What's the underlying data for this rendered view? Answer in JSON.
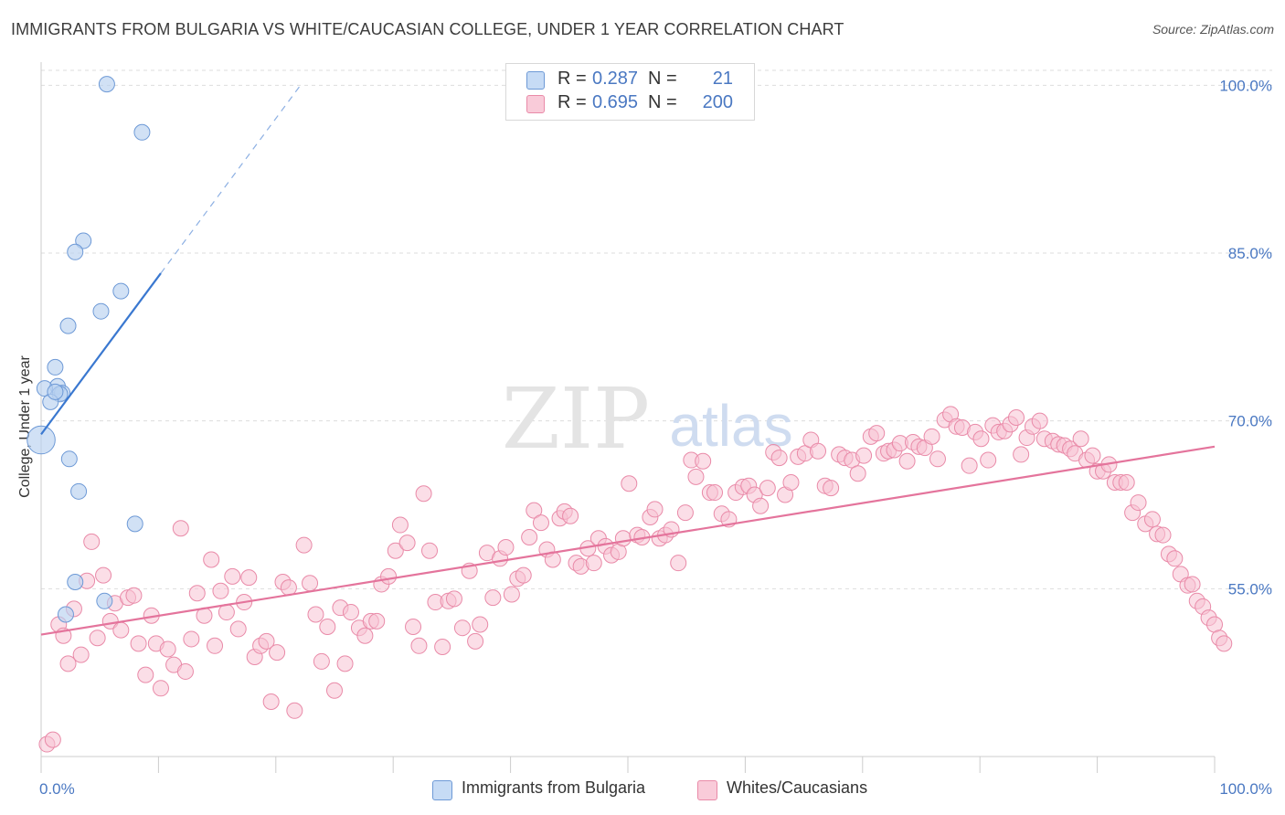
{
  "title": "IMMIGRANTS FROM BULGARIA VS WHITE/CAUCASIAN COLLEGE, UNDER 1 YEAR CORRELATION CHART",
  "source": "Source: ZipAtlas.com",
  "watermark": {
    "zip": "ZIP",
    "atlas": "atlas"
  },
  "legend": {
    "rows": [
      {
        "r_label": "R =",
        "r_value": "0.287",
        "n_label": "N =",
        "n_value": "21"
      },
      {
        "r_label": "R =",
        "r_value": "0.695",
        "n_label": "N =",
        "n_value": "200"
      }
    ]
  },
  "bottom_legend": {
    "series1": "Immigrants from Bulgaria",
    "series2": "Whites/Caucasians"
  },
  "colors": {
    "blue_fill": "#b8d1f0",
    "blue_stroke": "#6d99d6",
    "blue_line": "#3a78d0",
    "pink_fill": "#f7c3d3",
    "pink_stroke": "#e98aa8",
    "pink_line": "#e4749c",
    "grid": "#dddddd",
    "tick_text": "#4a78c2"
  },
  "chart_data": {
    "type": "scatter",
    "title": "IMMIGRANTS FROM BULGARIA VS WHITE/CAUCASIAN COLLEGE, UNDER 1 YEAR CORRELATION CHART",
    "xlabel": "",
    "ylabel": "College, Under 1 year",
    "xlim": [
      0,
      100
    ],
    "ylim": [
      40,
      101.5
    ],
    "x_tick_labels": [
      "0.0%",
      "100.0%"
    ],
    "y_ticks": [
      55,
      70,
      85,
      100
    ],
    "y_tick_labels": [
      "55.0%",
      "70.0%",
      "85.0%",
      "100.0%"
    ],
    "grid": true,
    "series": [
      {
        "name": "Immigrants from Bulgaria",
        "R": 0.287,
        "N": 21,
        "trend": {
          "x0": 0,
          "y0": 68.8,
          "x1": 10.2,
          "y1": 83.2,
          "dash_to_x": 22.0
        },
        "points": [
          [
            5.6,
            100.1
          ],
          [
            8.6,
            95.8
          ],
          [
            3.6,
            86.1
          ],
          [
            2.9,
            85.1
          ],
          [
            6.8,
            81.6
          ],
          [
            5.1,
            79.8
          ],
          [
            2.3,
            78.5
          ],
          [
            1.2,
            74.8
          ],
          [
            1.4,
            73.1
          ],
          [
            1.8,
            72.5
          ],
          [
            1.6,
            72.4
          ],
          [
            0.3,
            72.9
          ],
          [
            0.8,
            71.7
          ],
          [
            0.0,
            68.3
          ],
          [
            2.4,
            66.6
          ],
          [
            3.2,
            63.7
          ],
          [
            8.0,
            60.8
          ],
          [
            2.9,
            55.6
          ],
          [
            5.4,
            53.9
          ],
          [
            2.1,
            52.7
          ],
          [
            1.2,
            72.6
          ]
        ],
        "sizes": [
          10,
          10,
          10,
          10,
          10,
          10,
          10,
          10,
          10,
          10,
          10,
          10,
          10,
          18,
          10,
          10,
          10,
          10,
          10,
          10,
          10
        ]
      },
      {
        "name": "Whites/Caucasians",
        "R": 0.695,
        "N": 200,
        "trend": {
          "x0": 0,
          "y0": 50.9,
          "x1": 100,
          "y1": 67.7
        },
        "points": [
          [
            0.5,
            41.1
          ],
          [
            1.0,
            41.5
          ],
          [
            1.5,
            51.8
          ],
          [
            1.9,
            50.8
          ],
          [
            2.3,
            48.3
          ],
          [
            2.8,
            53.2
          ],
          [
            3.4,
            49.1
          ],
          [
            3.9,
            55.7
          ],
          [
            4.3,
            59.2
          ],
          [
            4.8,
            50.6
          ],
          [
            5.3,
            56.2
          ],
          [
            5.9,
            52.1
          ],
          [
            6.3,
            53.7
          ],
          [
            6.8,
            51.3
          ],
          [
            7.4,
            54.2
          ],
          [
            7.9,
            54.4
          ],
          [
            8.3,
            50.1
          ],
          [
            8.9,
            47.3
          ],
          [
            9.4,
            52.6
          ],
          [
            9.8,
            50.1
          ],
          [
            10.2,
            46.1
          ],
          [
            10.8,
            49.6
          ],
          [
            11.3,
            48.2
          ],
          [
            11.9,
            60.4
          ],
          [
            12.3,
            47.6
          ],
          [
            12.8,
            50.5
          ],
          [
            13.3,
            54.6
          ],
          [
            13.9,
            52.6
          ],
          [
            14.5,
            57.6
          ],
          [
            14.8,
            49.9
          ],
          [
            15.3,
            54.8
          ],
          [
            15.8,
            52.9
          ],
          [
            16.3,
            56.1
          ],
          [
            16.8,
            51.4
          ],
          [
            17.3,
            53.8
          ],
          [
            17.7,
            56.0
          ],
          [
            18.2,
            48.9
          ],
          [
            18.7,
            49.9
          ],
          [
            19.2,
            50.3
          ],
          [
            19.6,
            44.9
          ],
          [
            20.1,
            49.3
          ],
          [
            20.6,
            55.6
          ],
          [
            21.1,
            55.1
          ],
          [
            21.6,
            44.1
          ],
          [
            22.4,
            58.9
          ],
          [
            22.9,
            55.5
          ],
          [
            23.4,
            52.7
          ],
          [
            23.9,
            48.5
          ],
          [
            24.4,
            51.6
          ],
          [
            25.0,
            45.9
          ],
          [
            25.5,
            53.3
          ],
          [
            25.9,
            48.3
          ],
          [
            26.4,
            52.9
          ],
          [
            27.1,
            51.5
          ],
          [
            27.6,
            50.8
          ],
          [
            28.1,
            52.1
          ],
          [
            28.6,
            52.1
          ],
          [
            29.0,
            55.4
          ],
          [
            29.6,
            56.1
          ],
          [
            30.2,
            58.4
          ],
          [
            30.6,
            60.7
          ],
          [
            31.2,
            59.1
          ],
          [
            31.7,
            51.6
          ],
          [
            32.2,
            49.9
          ],
          [
            32.6,
            63.5
          ],
          [
            33.1,
            58.4
          ],
          [
            33.6,
            53.8
          ],
          [
            34.2,
            49.8
          ],
          [
            34.7,
            53.9
          ],
          [
            35.2,
            54.1
          ],
          [
            35.9,
            51.5
          ],
          [
            36.5,
            56.6
          ],
          [
            37.0,
            50.3
          ],
          [
            37.4,
            51.8
          ],
          [
            38.0,
            58.2
          ],
          [
            38.5,
            54.2
          ],
          [
            39.1,
            57.7
          ],
          [
            39.6,
            58.7
          ],
          [
            40.1,
            54.5
          ],
          [
            40.6,
            55.9
          ],
          [
            41.1,
            56.2
          ],
          [
            41.6,
            59.6
          ],
          [
            42.0,
            62.0
          ],
          [
            42.6,
            60.9
          ],
          [
            43.1,
            58.5
          ],
          [
            43.6,
            57.6
          ],
          [
            44.2,
            61.3
          ],
          [
            44.6,
            61.9
          ],
          [
            45.1,
            61.5
          ],
          [
            45.6,
            57.3
          ],
          [
            46.0,
            57.0
          ],
          [
            46.6,
            58.6
          ],
          [
            47.1,
            57.3
          ],
          [
            47.5,
            59.5
          ],
          [
            48.1,
            58.8
          ],
          [
            48.6,
            58.0
          ],
          [
            49.2,
            58.3
          ],
          [
            49.6,
            59.5
          ],
          [
            50.1,
            64.4
          ],
          [
            50.8,
            59.8
          ],
          [
            51.2,
            59.6
          ],
          [
            51.9,
            61.4
          ],
          [
            52.3,
            62.1
          ],
          [
            52.7,
            59.5
          ],
          [
            53.2,
            59.8
          ],
          [
            53.7,
            60.3
          ],
          [
            54.3,
            57.3
          ],
          [
            54.9,
            61.8
          ],
          [
            55.4,
            66.5
          ],
          [
            55.8,
            65.0
          ],
          [
            56.4,
            66.4
          ],
          [
            57.0,
            63.6
          ],
          [
            57.4,
            63.6
          ],
          [
            58.0,
            61.7
          ],
          [
            58.6,
            61.2
          ],
          [
            59.2,
            63.6
          ],
          [
            59.8,
            64.1
          ],
          [
            60.3,
            64.2
          ],
          [
            60.8,
            63.4
          ],
          [
            61.3,
            62.4
          ],
          [
            61.9,
            64.0
          ],
          [
            62.4,
            67.2
          ],
          [
            62.9,
            66.7
          ],
          [
            63.4,
            63.4
          ],
          [
            63.9,
            64.5
          ],
          [
            64.5,
            66.8
          ],
          [
            65.1,
            67.1
          ],
          [
            65.6,
            68.3
          ],
          [
            66.2,
            67.3
          ],
          [
            66.8,
            64.2
          ],
          [
            67.3,
            64.0
          ],
          [
            68.0,
            67.0
          ],
          [
            68.5,
            66.7
          ],
          [
            69.1,
            66.5
          ],
          [
            69.6,
            65.3
          ],
          [
            70.1,
            66.9
          ],
          [
            70.7,
            68.6
          ],
          [
            71.2,
            68.9
          ],
          [
            71.8,
            67.1
          ],
          [
            72.2,
            67.3
          ],
          [
            72.7,
            67.4
          ],
          [
            73.2,
            68.0
          ],
          [
            73.8,
            66.4
          ],
          [
            74.3,
            68.1
          ],
          [
            74.8,
            67.7
          ],
          [
            75.3,
            67.6
          ],
          [
            75.9,
            68.6
          ],
          [
            76.4,
            66.6
          ],
          [
            77.0,
            70.1
          ],
          [
            77.5,
            70.6
          ],
          [
            78.0,
            69.5
          ],
          [
            78.5,
            69.4
          ],
          [
            79.1,
            66.0
          ],
          [
            79.6,
            69.0
          ],
          [
            80.1,
            68.4
          ],
          [
            80.7,
            66.5
          ],
          [
            81.1,
            69.6
          ],
          [
            81.6,
            69.0
          ],
          [
            82.1,
            69.1
          ],
          [
            82.6,
            69.7
          ],
          [
            83.1,
            70.3
          ],
          [
            83.5,
            67.0
          ],
          [
            84.0,
            68.5
          ],
          [
            84.5,
            69.5
          ],
          [
            85.1,
            70.0
          ],
          [
            85.5,
            68.4
          ],
          [
            86.2,
            68.2
          ],
          [
            86.7,
            67.9
          ],
          [
            87.2,
            67.8
          ],
          [
            87.7,
            67.5
          ],
          [
            88.1,
            67.1
          ],
          [
            88.6,
            68.4
          ],
          [
            89.1,
            66.5
          ],
          [
            89.6,
            66.9
          ],
          [
            90.0,
            65.5
          ],
          [
            90.5,
            65.5
          ],
          [
            91.0,
            66.1
          ],
          [
            91.5,
            64.5
          ],
          [
            92.0,
            64.5
          ],
          [
            92.5,
            64.5
          ],
          [
            93.0,
            61.8
          ],
          [
            93.5,
            62.7
          ],
          [
            94.1,
            60.8
          ],
          [
            94.7,
            61.2
          ],
          [
            95.1,
            59.9
          ],
          [
            95.6,
            59.8
          ],
          [
            96.1,
            58.1
          ],
          [
            96.6,
            57.7
          ],
          [
            97.1,
            56.3
          ],
          [
            97.7,
            55.3
          ],
          [
            98.1,
            55.4
          ],
          [
            98.5,
            53.9
          ],
          [
            99.0,
            53.4
          ],
          [
            99.5,
            52.4
          ],
          [
            100.0,
            51.8
          ],
          [
            100.4,
            50.6
          ],
          [
            100.8,
            50.1
          ]
        ]
      }
    ]
  }
}
